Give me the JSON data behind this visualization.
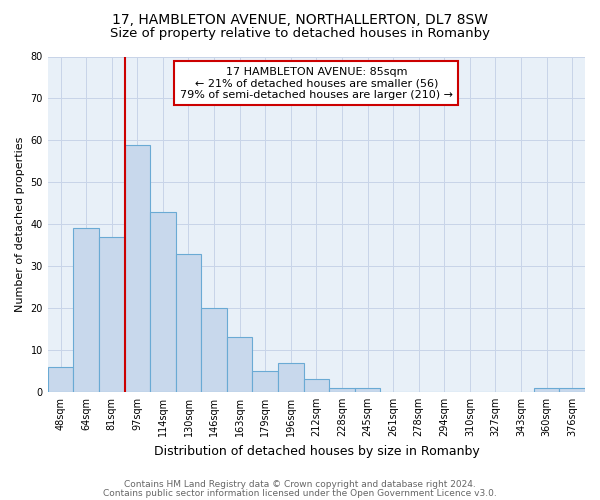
{
  "title1": "17, HAMBLETON AVENUE, NORTHALLERTON, DL7 8SW",
  "title2": "Size of property relative to detached houses in Romanby",
  "xlabel": "Distribution of detached houses by size in Romanby",
  "ylabel": "Number of detached properties",
  "bar_labels": [
    "48sqm",
    "64sqm",
    "81sqm",
    "97sqm",
    "114sqm",
    "130sqm",
    "146sqm",
    "163sqm",
    "179sqm",
    "196sqm",
    "212sqm",
    "228sqm",
    "245sqm",
    "261sqm",
    "278sqm",
    "294sqm",
    "310sqm",
    "327sqm",
    "343sqm",
    "360sqm",
    "376sqm"
  ],
  "bar_values": [
    6,
    39,
    37,
    59,
    43,
    33,
    20,
    13,
    5,
    7,
    3,
    1,
    1,
    0,
    0,
    0,
    0,
    0,
    0,
    1,
    1
  ],
  "bar_color": "#c8d8ec",
  "bar_edgecolor": "#6aaad4",
  "annotation_line0": "17 HAMBLETON AVENUE: 85sqm",
  "annotation_line1": "← 21% of detached houses are smaller (56)",
  "annotation_line2": "79% of semi-detached houses are larger (210) →",
  "vline_color": "#cc0000",
  "ylim": [
    0,
    80
  ],
  "yticks": [
    0,
    10,
    20,
    30,
    40,
    50,
    60,
    70,
    80
  ],
  "footnote1": "Contains HM Land Registry data © Crown copyright and database right 2024.",
  "footnote2": "Contains public sector information licensed under the Open Government Licence v3.0.",
  "bg_color": "#ffffff",
  "plot_bg_color": "#e8f0f8",
  "box_color": "#cc0000",
  "grid_color": "#c8d4e8",
  "title1_fontsize": 10,
  "title2_fontsize": 9.5,
  "xlabel_fontsize": 9,
  "ylabel_fontsize": 8,
  "tick_fontsize": 7,
  "annotation_fontsize": 8,
  "footnote_fontsize": 6.5
}
